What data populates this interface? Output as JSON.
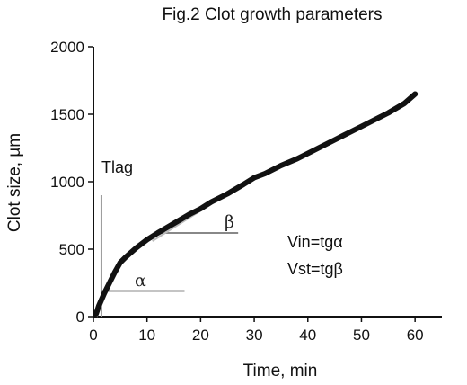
{
  "chart_data": {
    "type": "line",
    "title": "Fig.2 Clot growth parameters",
    "xlabel": "Time, min",
    "ylabel": "Clot size, µm",
    "xlim": [
      0,
      65
    ],
    "ylim": [
      0,
      2000
    ],
    "x_ticks": [
      0,
      10,
      20,
      30,
      40,
      50,
      60
    ],
    "y_ticks": [
      0,
      500,
      1000,
      1500,
      2000
    ],
    "grid": false,
    "series": [
      {
        "color": "#111111",
        "x": [
          0.5,
          1,
          2,
          3,
          4,
          5,
          6,
          8,
          10,
          12,
          15,
          18,
          20,
          22,
          25,
          28,
          30,
          32,
          35,
          38,
          40,
          42,
          45,
          48,
          50,
          52,
          55,
          58,
          60
        ],
        "y": [
          20,
          80,
          170,
          250,
          330,
          400,
          440,
          510,
          570,
          620,
          690,
          760,
          800,
          850,
          910,
          980,
          1030,
          1060,
          1120,
          1170,
          1210,
          1250,
          1310,
          1370,
          1410,
          1450,
          1510,
          1580,
          1650
        ]
      }
    ],
    "annotations": {
      "tlag": {
        "label": "Tlag",
        "x": 1.5
      },
      "alpha": {
        "label": "α",
        "x": [
          1.5,
          17
        ],
        "y": 190
      },
      "beta": {
        "label": "β",
        "x": [
          12,
          27
        ],
        "y": 620
      },
      "vin": "Vin=tgα",
      "vst": "Vst=tgβ"
    }
  }
}
